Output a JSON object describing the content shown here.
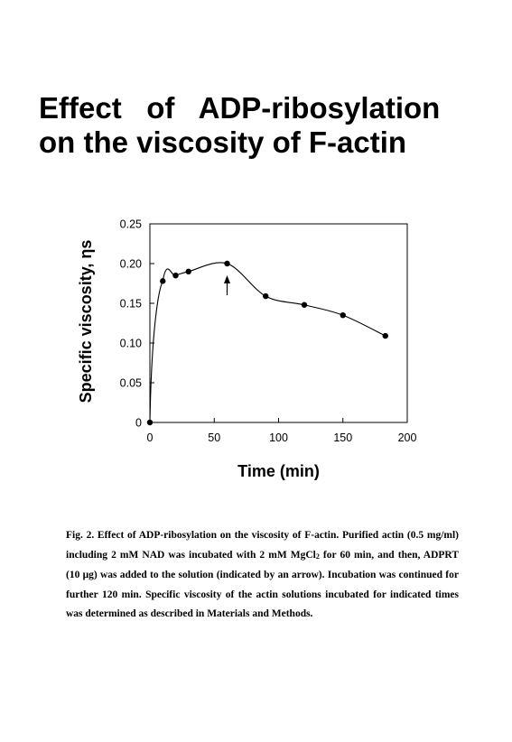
{
  "page": {
    "title_line1": "Effect   of   ADP-ribosylation",
    "title_line2": "on the viscosity of F-actin",
    "caption": {
      "part1": "Fig. 2.  Effect of ADP-ribosylation on the viscosity of F-actin.  Purified actin (0.5 mg/ml) including 2 mM NAD was incubated with 2 mM MgCl",
      "subscript": "2",
      "part2": " for 60 min, and then, ADPRT (10 μg) was added to the solution (indicated by an arrow).  Incubation was continued for further 120 min.  Specific viscosity of the actin solutions incubated for indicated times was determined as described in Materials and Methods."
    }
  },
  "chart_data": {
    "type": "scatter",
    "xlabel": "Time (min)",
    "ylabel": "Specific viscosity, ηs",
    "xlim": [
      0,
      200
    ],
    "ylim": [
      0,
      0.25
    ],
    "xticks": [
      0,
      50,
      100,
      150,
      200
    ],
    "xtick_labels": [
      "0",
      "50",
      "100",
      "150",
      "200"
    ],
    "yticks": [
      0,
      0.05,
      0.1,
      0.15,
      0.2,
      0.25
    ],
    "ytick_labels": [
      "0",
      "0.05",
      "0.10",
      "0.15",
      "0.20",
      "0.25"
    ],
    "grid": false,
    "smooth_curve": true,
    "series": [
      {
        "x": [
          0,
          10,
          20,
          30,
          60,
          90,
          120,
          150,
          183
        ],
        "y": [
          0,
          0.178,
          0.185,
          0.19,
          0.2,
          0.159,
          0.148,
          0.135,
          0.109
        ]
      }
    ],
    "annotations": [
      {
        "type": "arrow",
        "x": 60,
        "note": "ADPRT addition"
      }
    ]
  }
}
